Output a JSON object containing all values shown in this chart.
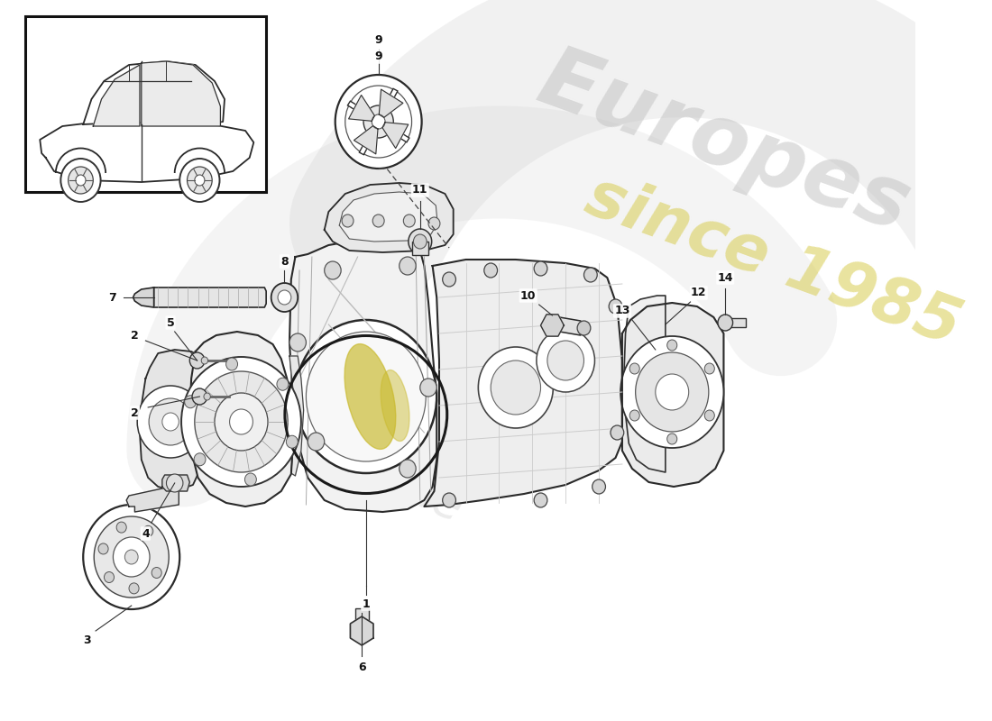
{
  "background_color": "#ffffff",
  "line_color": "#2a2a2a",
  "watermark1": "Europes",
  "watermark2": "since 1985",
  "wm_color1": "#c0c0c0",
  "wm_color2": "#d8cc50",
  "wm_text_color": "#c0c0c0",
  "accent_yellow": "#d4c040",
  "figsize": [
    11.0,
    8.0
  ],
  "dpi": 100,
  "label_fs": 9,
  "parts_label_color": "#111111"
}
